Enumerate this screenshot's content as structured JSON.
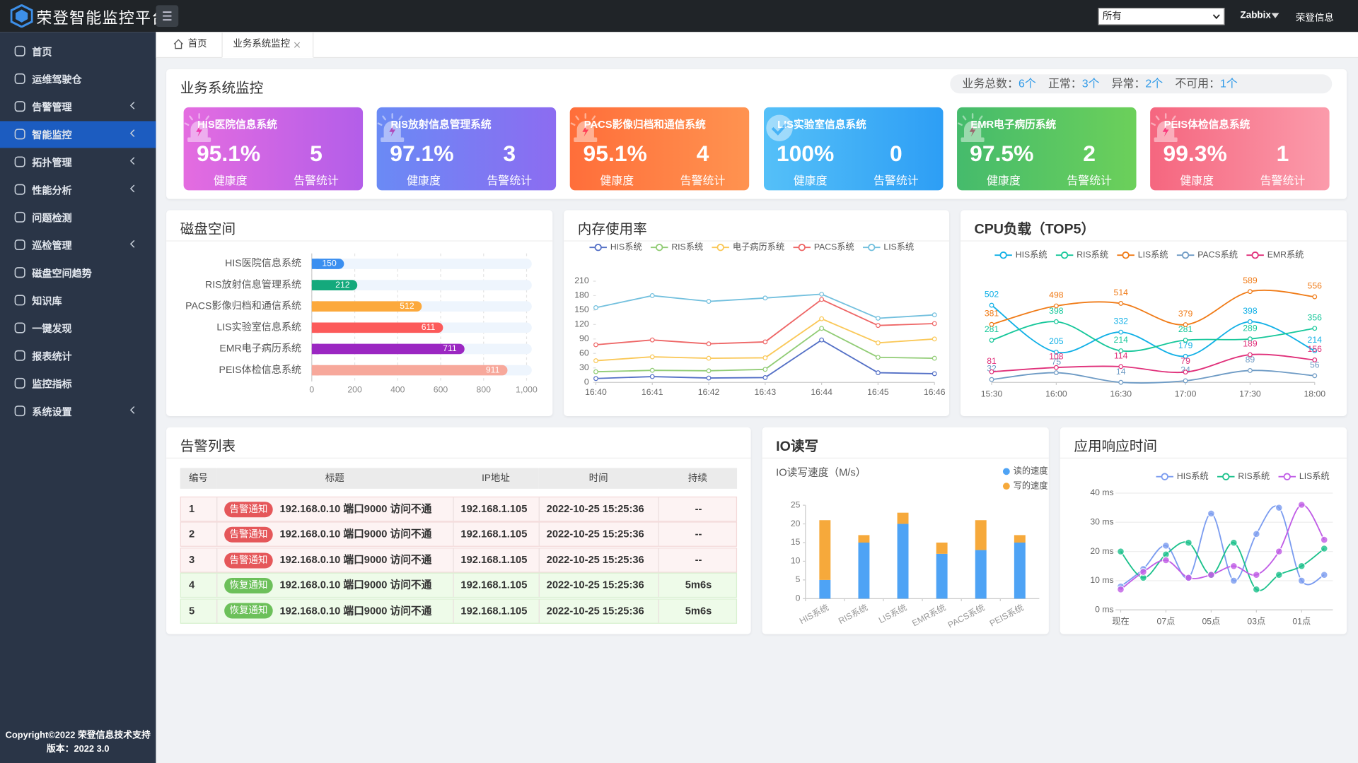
{
  "header": {
    "logo": "荣登智能监控平台",
    "select": "所有",
    "system": "Zabbix",
    "user": "荣登信息"
  },
  "sidebar": {
    "menu": [
      "首页",
      "运维驾驶仓",
      "告警管理",
      "智能监控",
      "拓扑管理",
      "性能分析",
      "问题检测",
      "巡检管理",
      "磁盘空间趋势",
      "知识库",
      "一键发现",
      "报表统计",
      "监控指标",
      "系统设置"
    ],
    "copyright": "Copyright©2022 荣登信息技术支持",
    "version": "版本：2022 3.0"
  },
  "tabs": [
    "首页",
    "业务系统监控"
  ],
  "monitor": {
    "title": "业务系统监控",
    "summary": [
      {
        "label": "业务总数：",
        "value": "6个"
      },
      {
        "label": "正常：",
        "value": "3个"
      },
      {
        "label": "异常：",
        "value": "2个"
      },
      {
        "label": "不可用：",
        "value": "1个"
      }
    ],
    "cards": [
      {
        "name": "HIS医院信息系统",
        "health": "95.1%",
        "health_label": "健康度",
        "alarms": "5",
        "alarms_label": "告警统计"
      },
      {
        "name": "RIS放射信息管理系统",
        "health": "97.1%",
        "health_label": "健康度",
        "alarms": "3",
        "alarms_label": "告警统计"
      },
      {
        "name": "PACS影像归档和通信系统",
        "health": "95.1%",
        "health_label": "健康度",
        "alarms": "4",
        "alarms_label": "告警统计"
      },
      {
        "name": "LIS实验室信息系统",
        "health": "100%",
        "health_label": "健康度",
        "alarms": "0",
        "alarms_label": "告警统计"
      },
      {
        "name": "EMR电子病历系统",
        "health": "97.5%",
        "health_label": "健康度",
        "alarms": "2",
        "alarms_label": "告警统计"
      },
      {
        "name": "PEIS体检信息系统",
        "health": "99.3%",
        "health_label": "健康度",
        "alarms": "1",
        "alarms_label": "告警统计"
      }
    ]
  },
  "alarm_table": {
    "title": "告警列表",
    "columns": [
      "编号",
      "标题",
      "IP地址",
      "时间",
      "持续"
    ],
    "rows": [
      [
        1,
        "告警通知",
        "192.168.0.10 端口9000 访问不通",
        "192.168.1.105",
        "2022-10-25 15:25:36",
        "--"
      ],
      [
        2,
        "告警通知",
        "192.168.0.10 端口9000 访问不通",
        "192.168.1.105",
        "2022-10-25 15:25:36",
        "--"
      ],
      [
        3,
        "告警通知",
        "192.168.0.10 端口9000 访问不通",
        "192.168.1.105",
        "2022-10-25 15:25:36",
        "--"
      ],
      [
        4,
        "恢复通知",
        "192.168.0.10 端口9000 访问不通",
        "192.168.1.105",
        "2022-10-25 15:25:36",
        "5m6s"
      ],
      [
        5,
        "恢复通知",
        "192.168.0.10 端口9000 访问不通",
        "192.168.1.105",
        "2022-10-25 15:25:36",
        "5m6s"
      ]
    ]
  },
  "chart_data": [
    {
      "type": "bar",
      "orientation": "horizontal",
      "title": "磁盘空间",
      "categories": [
        "HIS医院信息系统",
        "RIS放射信息管理系统",
        "PACS影像归档和通信系统",
        "LIS实验室信息系统",
        "EMR电子病历系统",
        "PEIS体检信息系统"
      ],
      "values": [
        150,
        212,
        512,
        611,
        711,
        911
      ],
      "colors": [
        "#3b8ff0",
        "#14a97c",
        "#fca93c",
        "#fc5a5a",
        "#9b27c2",
        "#f7a89b"
      ],
      "track_color": "#eef5fd",
      "xlim": [
        0,
        1000
      ],
      "xticks": [
        0,
        200,
        400,
        600,
        800,
        {
          "value": 1000,
          "label": "1,000"
        }
      ],
      "grid": true
    },
    {
      "type": "line",
      "title": "内存使用率",
      "categories": [
        "16:40",
        "16:41",
        "16:42",
        "16:43",
        "16:44",
        "16:45",
        "16:46"
      ],
      "series": [
        {
          "name": "HIS系统",
          "color": "#5470c6",
          "values": [
            8,
            12,
            9,
            10,
            88,
            20,
            18
          ]
        },
        {
          "name": "RIS系统",
          "color": "#91cc75",
          "values": [
            22,
            25,
            24,
            27,
            112,
            52,
            50
          ]
        },
        {
          "name": "电子病历系统",
          "color": "#fac858",
          "values": [
            45,
            53,
            50,
            51,
            132,
            82,
            90
          ]
        },
        {
          "name": "PACS系统",
          "color": "#ee6666",
          "values": [
            78,
            88,
            80,
            84,
            172,
            118,
            122
          ]
        },
        {
          "name": "LIS系统",
          "color": "#73c0de",
          "values": [
            155,
            180,
            168,
            175,
            183,
            133,
            140
          ]
        }
      ],
      "ylim": [
        0,
        210
      ],
      "yticks": [
        0,
        30,
        60,
        90,
        120,
        150,
        180,
        210
      ],
      "grid": false,
      "smooth": false,
      "marker": "hollow"
    },
    {
      "type": "line",
      "title": "CPU负载（TOP5）",
      "categories": [
        "15:30",
        "16:00",
        "16:30",
        "17:00",
        "17:30",
        "18:00"
      ],
      "series": [
        {
          "name": "HIS系统",
          "color": "#11b0e6",
          "values": [
            502,
            205,
            332,
            179,
            398,
            214
          ]
        },
        {
          "name": "RIS系统",
          "color": "#16c79a",
          "values": [
            281,
            398,
            214,
            281,
            289,
            356
          ]
        },
        {
          "name": "LIS系统",
          "color": "#f07b17",
          "values": [
            381,
            498,
            514,
            379,
            589,
            556
          ]
        },
        {
          "name": "PACS系统",
          "color": "#6e9bc5",
          "values": [
            32,
            75,
            14,
            24,
            89,
            56
          ]
        },
        {
          "name": "EMR系统",
          "color": "#e0307a",
          "values": [
            81,
            108,
            114,
            79,
            189,
            156
          ]
        }
      ],
      "smooth": true,
      "show_values": true,
      "marker": "hollow"
    },
    {
      "type": "bar",
      "stacked": true,
      "title": "IO读写",
      "subtitle": "IO读写速度（M/s）",
      "categories": [
        "HIS系统",
        "RIS系统",
        "LIS系统",
        "EMR系统",
        "PACS系统",
        "PEIS系统"
      ],
      "series": [
        {
          "name": "读的速度",
          "color": "#4ea3f5",
          "values": [
            5,
            15,
            20,
            12,
            13,
            15
          ]
        },
        {
          "name": "写的速度",
          "color": "#f6a93b",
          "values": [
            16,
            2,
            3,
            3,
            8,
            2
          ]
        }
      ],
      "ylim": [
        0,
        25
      ],
      "yticks": [
        0,
        5,
        10,
        15,
        20,
        25
      ],
      "grid": false,
      "legend": "top-right"
    },
    {
      "type": "line",
      "title": "应用响应时间",
      "categories": [
        "现在",
        null,
        "07点",
        null,
        "05点",
        null,
        "03点",
        null,
        "01点",
        null
      ],
      "series": [
        {
          "name": "HIS系统",
          "color": "#7b9cf0",
          "values": [
            8,
            14,
            22,
            11,
            33,
            10,
            26,
            35,
            10,
            12
          ]
        },
        {
          "name": "RIS系统",
          "color": "#1bc18b",
          "values": [
            20,
            11,
            19,
            23,
            12,
            23,
            7,
            12,
            15,
            21
          ]
        },
        {
          "name": "LIS系统",
          "color": "#c05ce6",
          "values": [
            7,
            13,
            17,
            11,
            12,
            15,
            12,
            20,
            36,
            24
          ]
        }
      ],
      "ylim": [
        0,
        40
      ],
      "yticks": [
        {
          "value": 0,
          "label": "0 ms"
        },
        {
          "value": 10,
          "label": "10 ms"
        },
        {
          "value": 20,
          "label": "20 ms"
        },
        {
          "value": 30,
          "label": "30 ms"
        },
        {
          "value": 40,
          "label": "40 ms"
        }
      ],
      "grid": true,
      "smooth": true,
      "marker": "filled"
    }
  ]
}
